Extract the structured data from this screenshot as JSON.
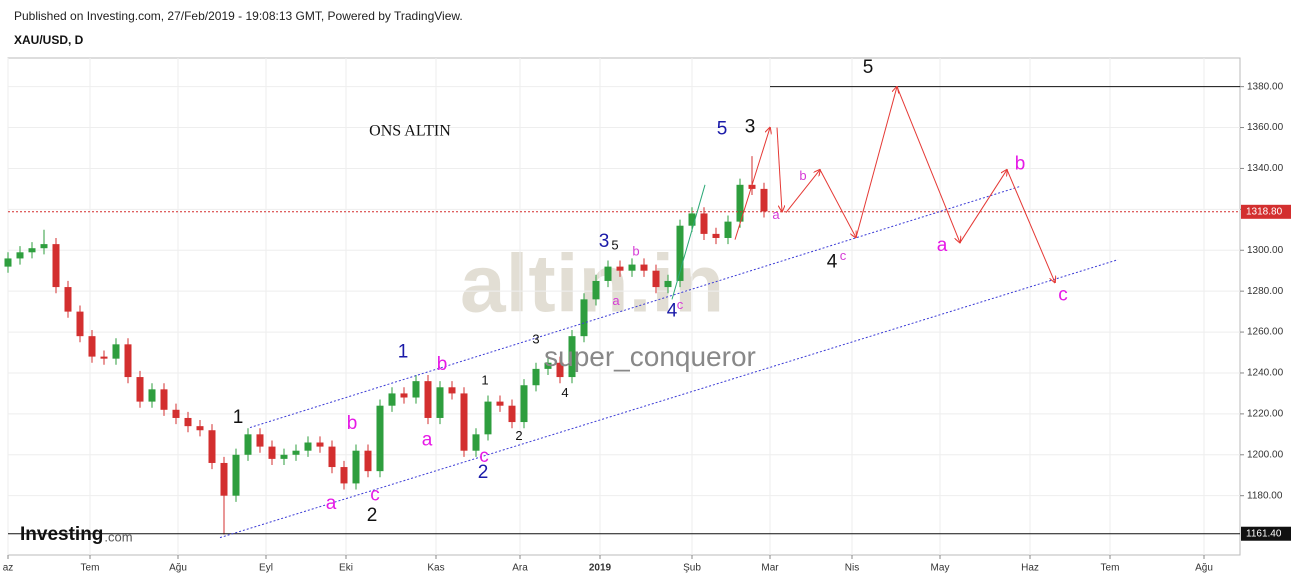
{
  "header": {
    "published": "Published on Investing.com, 27/Feb/2019 - 19:08:13 GMT, Powered by TradingView.",
    "symbol": "XAU/USD, D"
  },
  "logo": "Investing",
  "logo_suffix": ".com",
  "watermark": "altin.in",
  "chart_data": {
    "type": "candlestick",
    "grid": true,
    "xlim": [
      0,
      308
    ],
    "ylim": [
      1151,
      1394
    ],
    "xticks": [
      {
        "value": 0,
        "label": "az"
      },
      {
        "value": 20.5,
        "label": "Tem"
      },
      {
        "value": 42.5,
        "label": "Ağu"
      },
      {
        "value": 64.5,
        "label": "Eyl"
      },
      {
        "value": 84.5,
        "label": "Eki"
      },
      {
        "value": 107,
        "label": "Kas"
      },
      {
        "value": 128,
        "label": "Ara"
      },
      {
        "value": 148,
        "label": "2019"
      },
      {
        "value": 171,
        "label": "Şub"
      },
      {
        "value": 190.5,
        "label": "Mar"
      },
      {
        "value": 211,
        "label": "Nis"
      },
      {
        "value": 233,
        "label": "May"
      },
      {
        "value": 255.5,
        "label": "Haz"
      },
      {
        "value": 275.5,
        "label": "Tem"
      },
      {
        "value": 299,
        "label": "Ağu"
      }
    ],
    "yticks": [
      {
        "value": 1180,
        "label": "1180.00"
      },
      {
        "value": 1200,
        "label": "1200.00"
      },
      {
        "value": 1220,
        "label": "1220.00"
      },
      {
        "value": 1240,
        "label": "1240.00"
      },
      {
        "value": 1260,
        "label": "1260.00"
      },
      {
        "value": 1280,
        "label": "1280.00"
      },
      {
        "value": 1300,
        "label": "1300.00"
      },
      {
        "value": 1320,
        "label": "1320.00"
      },
      {
        "value": 1340,
        "label": "1340.00"
      },
      {
        "value": 1360,
        "label": "1360.00"
      },
      {
        "value": 1380,
        "label": "1380.00"
      }
    ],
    "up_color": "#2e9e3e",
    "down_color": "#d32f2f",
    "x": [
      0,
      3,
      6,
      9,
      12,
      15,
      18,
      21,
      24,
      27,
      30,
      33,
      36,
      39,
      42,
      45,
      48,
      51,
      54,
      57,
      60,
      63,
      66,
      69,
      72,
      75,
      78,
      81,
      84,
      87,
      90,
      93,
      96,
      99,
      102,
      105,
      108,
      111,
      114,
      117,
      120,
      123,
      126,
      129,
      132,
      135,
      138,
      141,
      144,
      147,
      150,
      153,
      156,
      159,
      162,
      165,
      168,
      171,
      174,
      177,
      180,
      183,
      186,
      189
    ],
    "open": [
      1292,
      1296,
      1299,
      1301,
      1303,
      1282,
      1270,
      1258,
      1248,
      1247,
      1254,
      1238,
      1226,
      1232,
      1222,
      1218,
      1214,
      1212,
      1196,
      1180,
      1200,
      1210,
      1204,
      1198,
      1200,
      1202,
      1206,
      1204,
      1194,
      1186,
      1202,
      1192,
      1224,
      1230,
      1228,
      1236,
      1218,
      1233,
      1230,
      1202,
      1210,
      1226,
      1224,
      1216,
      1234,
      1242,
      1245,
      1238,
      1258,
      1276,
      1285,
      1292,
      1290,
      1293,
      1290,
      1282,
      1285,
      1312,
      1318,
      1308,
      1306,
      1314,
      1332,
      1330
    ],
    "high": [
      1299,
      1302,
      1304,
      1310,
      1306,
      1285,
      1273,
      1261,
      1251,
      1257,
      1257,
      1241,
      1235,
      1235,
      1225,
      1221,
      1217,
      1215,
      1199,
      1203,
      1213,
      1213,
      1207,
      1203,
      1205,
      1209,
      1209,
      1207,
      1197,
      1205,
      1205,
      1227,
      1233,
      1233,
      1239,
      1239,
      1236,
      1236,
      1233,
      1213,
      1229,
      1229,
      1227,
      1237,
      1245,
      1248,
      1248,
      1261,
      1279,
      1288,
      1295,
      1295,
      1296,
      1296,
      1293,
      1288,
      1315,
      1321,
      1321,
      1311,
      1317,
      1335,
      1346,
      1333
    ],
    "low": [
      1289,
      1293,
      1296,
      1298,
      1279,
      1267,
      1255,
      1245,
      1244,
      1244,
      1235,
      1223,
      1223,
      1219,
      1215,
      1211,
      1209,
      1193,
      1161,
      1177,
      1197,
      1201,
      1195,
      1195,
      1197,
      1199,
      1201,
      1191,
      1183,
      1183,
      1189,
      1189,
      1221,
      1225,
      1225,
      1215,
      1215,
      1227,
      1199,
      1199,
      1207,
      1221,
      1213,
      1213,
      1231,
      1239,
      1235,
      1235,
      1255,
      1273,
      1282,
      1287,
      1287,
      1287,
      1279,
      1279,
      1282,
      1309,
      1305,
      1303,
      1303,
      1311,
      1327,
      1316
    ],
    "close": [
      1296,
      1299,
      1301,
      1303,
      1282,
      1270,
      1258,
      1248,
      1247,
      1254,
      1238,
      1226,
      1232,
      1222,
      1218,
      1214,
      1212,
      1196,
      1180,
      1200,
      1210,
      1204,
      1198,
      1200,
      1202,
      1206,
      1204,
      1194,
      1186,
      1202,
      1192,
      1224,
      1230,
      1228,
      1236,
      1218,
      1233,
      1230,
      1202,
      1210,
      1226,
      1224,
      1216,
      1234,
      1242,
      1245,
      1238,
      1258,
      1276,
      1285,
      1292,
      1290,
      1293,
      1290,
      1282,
      1285,
      1312,
      1318,
      1308,
      1306,
      1314,
      1332,
      1330,
      1319
    ],
    "price_tags": [
      {
        "value": 1318.8,
        "label": "1318.80",
        "color": "#d32f2f"
      },
      {
        "value": 1161.4,
        "label": "1161.40",
        "color": "#111111"
      }
    ],
    "overlays": [
      {
        "color": "#d32f2f",
        "style": "dotted",
        "arrow": false,
        "x": [
          0,
          308
        ],
        "y": [
          1318.8,
          1318.8
        ]
      },
      {
        "color": "#111111",
        "style": "solid",
        "arrow": false,
        "x": [
          0,
          308
        ],
        "y": [
          1161.4,
          1161.4
        ]
      },
      {
        "color": "#111111",
        "style": "solid",
        "arrow": false,
        "x": [
          190.5,
          308
        ],
        "y": [
          1380,
          1380
        ]
      },
      {
        "color": "#3b3bd6",
        "style": "dotted",
        "arrow": false,
        "x": [
          60.5,
          253
        ],
        "y": [
          1213.3,
          1331.2
        ]
      },
      {
        "color": "#3b3bd6",
        "style": "dotted",
        "arrow": false,
        "x": [
          53,
          277.5
        ],
        "y": [
          1159.5,
          1295.4
        ]
      },
      {
        "color": "#2aa876",
        "style": "solid",
        "arrow": false,
        "x": [
          166,
          174.25
        ],
        "y": [
          1276,
          1332
        ]
      },
      {
        "color": "#e53935",
        "style": "solid",
        "arrow": true,
        "x": [
          181.75,
          190.5
        ],
        "y": [
          1305.2,
          1360
        ]
      },
      {
        "color": "#e53935",
        "style": "solid",
        "arrow": true,
        "x": [
          192.25,
          193.5
        ],
        "y": [
          1360,
          1318.9
        ]
      },
      {
        "color": "#e53935",
        "style": "solid",
        "arrow": true,
        "x": [
          194.5,
          203
        ],
        "y": [
          1318.4,
          1339.4
        ]
      },
      {
        "color": "#e53935",
        "style": "solid",
        "arrow": true,
        "x": [
          203,
          212
        ],
        "y": [
          1339.4,
          1306.2
        ]
      },
      {
        "color": "#e53935",
        "style": "solid",
        "arrow": true,
        "x": [
          212,
          222.25
        ],
        "y": [
          1306.2,
          1380
        ]
      },
      {
        "color": "#e53935",
        "style": "solid",
        "arrow": true,
        "x": [
          222.25,
          238
        ],
        "y": [
          1380,
          1303.7
        ]
      },
      {
        "color": "#e53935",
        "style": "solid",
        "arrow": true,
        "x": [
          238,
          249.75
        ],
        "y": [
          1303.7,
          1339.4
        ]
      },
      {
        "color": "#e53935",
        "style": "solid",
        "arrow": true,
        "x": [
          249.75,
          261.75
        ],
        "y": [
          1339.4,
          1284.2
        ]
      }
    ],
    "annotations": [
      {
        "text": "ONS ALTIN",
        "x": 100.5,
        "y": 1358,
        "color": "#111111",
        "size": "title"
      },
      {
        "text": "super_conqueror",
        "x": 160.5,
        "y": 1247,
        "color": "#888888",
        "size": "watermark"
      },
      {
        "text": "5",
        "x": 215,
        "y": 1389,
        "color": "#111111",
        "size": "large"
      },
      {
        "text": "5",
        "x": 178.5,
        "y": 1359,
        "color": "#1a1aa8",
        "size": "large"
      },
      {
        "text": "3",
        "x": 185.5,
        "y": 1360,
        "color": "#111111",
        "size": "large"
      },
      {
        "text": "3",
        "x": 149,
        "y": 1304,
        "color": "#1a1aa8",
        "size": "large"
      },
      {
        "text": "5",
        "x": 151.75,
        "y": 1302,
        "color": "#111111",
        "size": "small"
      },
      {
        "text": "b",
        "x": 157,
        "y": 1299,
        "color": "#d63bd6",
        "size": "small"
      },
      {
        "text": "a",
        "x": 152,
        "y": 1275,
        "color": "#d63bd6",
        "size": "small"
      },
      {
        "text": "4",
        "x": 166,
        "y": 1270,
        "color": "#1a1aa8",
        "size": "large"
      },
      {
        "text": "c",
        "x": 168,
        "y": 1273,
        "color": "#d63bd6",
        "size": "small"
      },
      {
        "text": "a",
        "x": 192,
        "y": 1317,
        "color": "#d63bd6",
        "size": "small"
      },
      {
        "text": "b",
        "x": 198.75,
        "y": 1336,
        "color": "#d63bd6",
        "size": "small"
      },
      {
        "text": "4",
        "x": 206,
        "y": 1294,
        "color": "#111111",
        "size": "large"
      },
      {
        "text": "c",
        "x": 208.75,
        "y": 1297,
        "color": "#d63bd6",
        "size": "small"
      },
      {
        "text": "a",
        "x": 233.5,
        "y": 1302,
        "color": "#e619e6",
        "size": "large"
      },
      {
        "text": "b",
        "x": 253,
        "y": 1342,
        "color": "#e619e6",
        "size": "large"
      },
      {
        "text": "c",
        "x": 263.75,
        "y": 1278,
        "color": "#e619e6",
        "size": "large"
      },
      {
        "text": "1",
        "x": 57.5,
        "y": 1218,
        "color": "#111111",
        "size": "large"
      },
      {
        "text": "a",
        "x": 80.75,
        "y": 1176,
        "color": "#e619e6",
        "size": "large"
      },
      {
        "text": "b",
        "x": 86,
        "y": 1215,
        "color": "#e619e6",
        "size": "large"
      },
      {
        "text": "c",
        "x": 91.75,
        "y": 1180,
        "color": "#e619e6",
        "size": "large"
      },
      {
        "text": "2",
        "x": 91,
        "y": 1170,
        "color": "#111111",
        "size": "large"
      },
      {
        "text": "1",
        "x": 98.75,
        "y": 1250,
        "color": "#1a1aa8",
        "size": "large"
      },
      {
        "text": "b",
        "x": 108.5,
        "y": 1244,
        "color": "#e619e6",
        "size": "large"
      },
      {
        "text": "a",
        "x": 104.75,
        "y": 1207,
        "color": "#e619e6",
        "size": "large"
      },
      {
        "text": "c",
        "x": 119,
        "y": 1199,
        "color": "#e619e6",
        "size": "large"
      },
      {
        "text": "2",
        "x": 118.75,
        "y": 1191,
        "color": "#1a1aa8",
        "size": "large"
      },
      {
        "text": "1",
        "x": 119.25,
        "y": 1236,
        "color": "#111111",
        "size": "small"
      },
      {
        "text": "2",
        "x": 127.75,
        "y": 1209,
        "color": "#111111",
        "size": "small"
      },
      {
        "text": "3",
        "x": 132,
        "y": 1256,
        "color": "#111111",
        "size": "small"
      },
      {
        "text": "4",
        "x": 139.25,
        "y": 1230,
        "color": "#111111",
        "size": "small"
      }
    ]
  }
}
